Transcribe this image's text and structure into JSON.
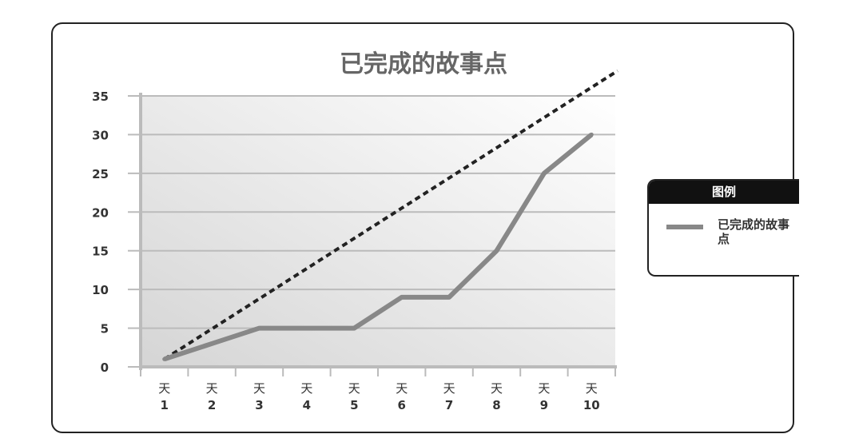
{
  "chart_data": {
    "type": "line",
    "title": "已完成的故事点",
    "categories": [
      {
        "top": "天",
        "num": "1"
      },
      {
        "top": "天",
        "num": "2"
      },
      {
        "top": "天",
        "num": "3"
      },
      {
        "top": "天",
        "num": "4"
      },
      {
        "top": "天",
        "num": "5"
      },
      {
        "top": "天",
        "num": "6"
      },
      {
        "top": "天",
        "num": "7"
      },
      {
        "top": "天",
        "num": "8"
      },
      {
        "top": "天",
        "num": "9"
      },
      {
        "top": "天",
        "num": "10"
      }
    ],
    "ylim": [
      0,
      35
    ],
    "yticks": [
      0,
      5,
      10,
      15,
      20,
      25,
      30,
      35
    ],
    "grid": true,
    "legend_position": "right",
    "series": [
      {
        "name": "已完成的故事点",
        "values": [
          1,
          3,
          5,
          5,
          5,
          9,
          9,
          15,
          25,
          30
        ],
        "color": "#888888",
        "style": "solid"
      }
    ],
    "ideal_line": {
      "values": [
        1,
        4.9,
        8.8,
        12.7,
        16.6,
        20.5,
        24.4,
        28.3,
        32.2,
        36.1
      ],
      "color": "#222222",
      "style": "dashed"
    }
  },
  "legend": {
    "title": "图例"
  },
  "colors": {
    "axis": "#bbbbbb",
    "grid": "#bbbbbb",
    "plot_gradient_dark": "#d5d5d5",
    "plot_gradient_light": "#ffffff"
  }
}
